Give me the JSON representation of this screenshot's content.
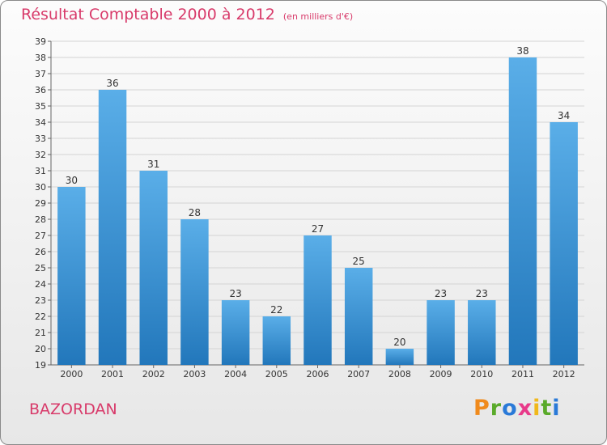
{
  "header": {
    "title": "Résultat Comptable 2000 à 2012",
    "subtitle": "(en milliers d'€)"
  },
  "footer": {
    "commune": "BAZORDAN",
    "logo": [
      "P",
      "r",
      "o",
      "x",
      "i",
      "t",
      "i"
    ]
  },
  "colors": {
    "accent": "#d83a6a",
    "bar_top": "#5aaee8",
    "bar_bottom": "#2277bb",
    "logo": [
      "#f08a1c",
      "#5aaa2a",
      "#2a7ad8",
      "#e83a8a",
      "#f0b81c",
      "#5aaa2a",
      "#2a7ad8"
    ]
  },
  "chart_data": {
    "type": "bar",
    "title": "Résultat Comptable 2000 à 2012",
    "subtitle": "(en milliers d'€)",
    "categories": [
      "2000",
      "2001",
      "2002",
      "2003",
      "2004",
      "2005",
      "2006",
      "2007",
      "2008",
      "2009",
      "2010",
      "2011",
      "2012"
    ],
    "values": [
      30,
      36,
      31,
      28,
      23,
      22,
      27,
      25,
      20,
      23,
      23,
      38,
      34
    ],
    "ylim": [
      19,
      39
    ],
    "yticks": [
      19,
      20,
      21,
      22,
      23,
      24,
      25,
      26,
      27,
      28,
      29,
      30,
      31,
      32,
      33,
      34,
      35,
      36,
      37,
      38,
      39
    ],
    "grid": true,
    "legend": "none"
  }
}
